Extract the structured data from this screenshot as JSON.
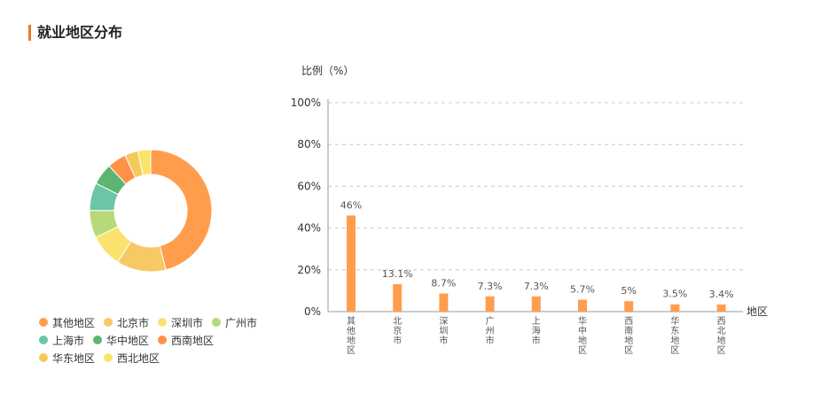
{
  "page": {
    "title": "就业地区分布"
  },
  "colors": {
    "accent": "#f0781e",
    "bar": "#ff9d4d",
    "slices": [
      "#ff9d4d",
      "#f6c964",
      "#fbe26f",
      "#b6d97a",
      "#6cc6a6",
      "#5db571",
      "#ff9248",
      "#f5c95a",
      "#fbe36a"
    ]
  },
  "chart_data": [
    {
      "type": "pie",
      "variant": "donut",
      "labels": [
        "其他地区",
        "北京市",
        "深圳市",
        "广州市",
        "上海市",
        "华中地区",
        "西南地区",
        "华东地区",
        "西北地区"
      ],
      "values": [
        46,
        13.1,
        8.7,
        7.3,
        7.3,
        5.7,
        5,
        3.5,
        3.4
      ],
      "legend_position": "bottom-left"
    },
    {
      "type": "bar",
      "categories": [
        "其他地区",
        "北京市",
        "深圳市",
        "广州市",
        "上海市",
        "华中地区",
        "西南地区",
        "华东地区",
        "西北地区"
      ],
      "values": [
        46,
        13.1,
        8.7,
        7.3,
        7.3,
        5.7,
        5,
        3.5,
        3.4
      ],
      "data_labels": [
        "46%",
        "13.1%",
        "8.7%",
        "7.3%",
        "7.3%",
        "5.7%",
        "5%",
        "3.5%",
        "3.4%"
      ],
      "ylabel": "比例（%）",
      "xlabel": "地区",
      "ylim": [
        0,
        100
      ],
      "yticks": [
        "0%",
        "20%",
        "40%",
        "60%",
        "80%",
        "100%"
      ],
      "grid": true
    }
  ]
}
